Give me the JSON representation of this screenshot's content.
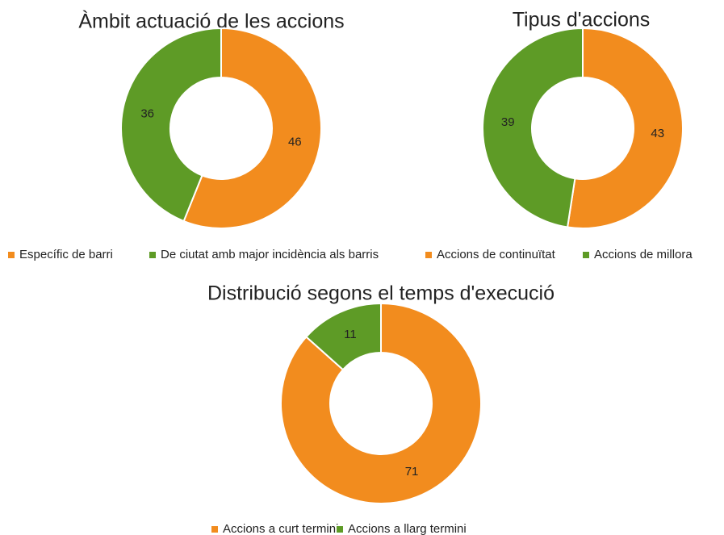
{
  "chart_data": [
    {
      "type": "donut",
      "title": "Àmbit actuació de les accions",
      "categories": [
        "Específic de barri",
        "De ciutat amb major incidència als barris"
      ],
      "values": [
        46,
        36
      ],
      "colors": [
        "#f28c1e",
        "#5e9b26"
      ],
      "legend": "bottom"
    },
    {
      "type": "donut",
      "title": "Tipus d'accions",
      "categories": [
        "Accions de continuïtat",
        "Accions de millora"
      ],
      "values": [
        43,
        39
      ],
      "colors": [
        "#f28c1e",
        "#5e9b26"
      ],
      "legend": "bottom"
    },
    {
      "type": "donut",
      "title": "Distribució segons el temps d'execució",
      "categories": [
        "Accions a curt termini",
        "Accions a llarg termini"
      ],
      "values": [
        71,
        11
      ],
      "colors": [
        "#f28c1e",
        "#5e9b26"
      ],
      "legend": "bottom"
    }
  ]
}
